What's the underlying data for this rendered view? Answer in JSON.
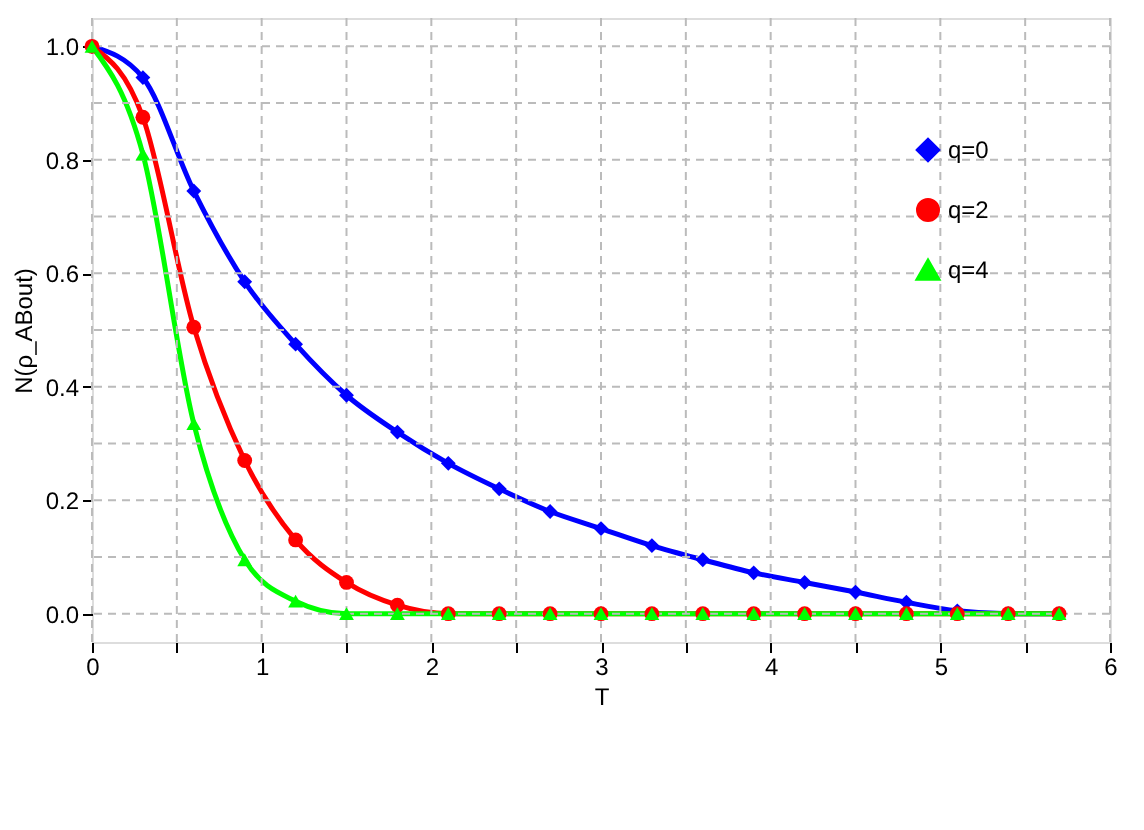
{
  "chart_data": {
    "type": "line",
    "xlabel": "T",
    "ylabel": "N(ρ_ABout)",
    "xlim": [
      0,
      6
    ],
    "ylim": [
      -0.05,
      1.05
    ],
    "xticks": [
      0,
      {
        "value": 0.5,
        "label": null
      },
      1,
      {
        "value": 1.5,
        "label": null
      },
      2,
      {
        "value": 2.5,
        "label": null
      },
      3,
      {
        "value": 3.5,
        "label": null
      },
      4,
      {
        "value": 4.5,
        "label": null
      },
      5,
      {
        "value": 5.5,
        "label": null
      },
      6
    ],
    "yticks": [
      {
        "value": 0,
        "label": "0.0"
      },
      {
        "value": 0.1,
        "label": null
      },
      0.2,
      {
        "value": 0.3,
        "label": null
      },
      0.4,
      {
        "value": 0.5,
        "label": null
      },
      0.6,
      {
        "value": 0.7,
        "label": null
      },
      0.8,
      {
        "value": 0.9,
        "label": null
      },
      {
        "value": 1,
        "label": "1.0"
      }
    ],
    "x": [
      0,
      0.3,
      0.6,
      0.9,
      1.2,
      1.5,
      1.8,
      2.1,
      2.4,
      2.7,
      3.0,
      3.3,
      3.6,
      3.9,
      4.2,
      4.5,
      4.8,
      5.1,
      5.4,
      5.7
    ],
    "grid": true,
    "legend": "top right",
    "line_style": "solid",
    "series": [
      {
        "name": "q=0",
        "color": "#0000ff",
        "marker": "diamond",
        "values": [
          1.0,
          0.945,
          0.745,
          0.585,
          0.475,
          0.385,
          0.32,
          0.265,
          0.22,
          0.18,
          0.15,
          0.12,
          0.095,
          0.072,
          0.055,
          0.038,
          0.02,
          0.005,
          0,
          0
        ]
      },
      {
        "name": "q=2",
        "color": "#ff0000",
        "marker": "circle",
        "values": [
          1.0,
          0.875,
          0.505,
          0.27,
          0.13,
          0.055,
          0.015,
          0,
          0,
          0,
          0,
          0,
          0,
          0,
          0,
          0,
          0,
          0,
          0,
          0
        ]
      },
      {
        "name": "q=4",
        "color": "#00ff00",
        "marker": "triangle",
        "values": [
          1.0,
          0.81,
          0.335,
          0.095,
          0.022,
          0,
          0,
          0,
          0,
          0,
          0,
          0,
          0,
          0,
          0,
          0,
          0,
          0,
          0,
          0
        ]
      }
    ]
  }
}
